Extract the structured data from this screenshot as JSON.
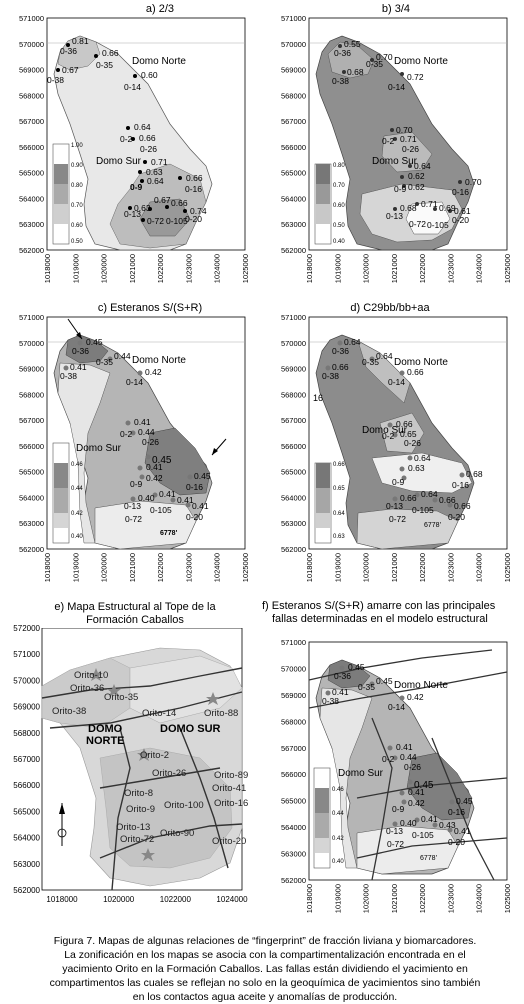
{
  "panels": {
    "a": {
      "title": "a) 2/3",
      "domo_norte": "Domo Norte",
      "domo_sur": "Domo Sur",
      "legend": [
        "1.00",
        "0.90",
        "0.80",
        "0.70",
        "0.60",
        "0.50"
      ]
    },
    "b": {
      "title": "b) 3/4",
      "domo_norte": "Domo Norte",
      "domo_sur": "Domo Sur",
      "legend": [
        "0.80",
        "0.70",
        "0.60",
        "0.50",
        "0.40"
      ]
    },
    "c": {
      "title": "c) Esteranos S/(S+R)",
      "domo_norte": "Domo Norte",
      "domo_sur": "Domo Sur",
      "legend": [
        "0.46",
        "0.44",
        "0.42",
        "0.40"
      ],
      "well_label": "6778'"
    },
    "d": {
      "title": "d) C29bb/bb+aa",
      "domo_norte": "Domo Norte",
      "domo_sur": "Domo Sur",
      "legend": [
        "0.66",
        "0.65",
        "0.64",
        "0.63"
      ],
      "side_label": "16",
      "well_label": "6778'"
    },
    "e": {
      "title_line1": "e) Mapa Estructural al Tope de la",
      "title_line2": "Formación Caballos",
      "domo_norte_1": "DOMO",
      "domo_norte_2": "NORTE",
      "domo_sur": "DOMO SUR",
      "wells": [
        "Orito-10",
        "Orito-36",
        "Orito-35",
        "Orito-38",
        "Orito-14",
        "Orito-88",
        "Orito-2",
        "Orito-26",
        "Orito-8",
        "Orito-9",
        "Orito-100",
        "Orito-13",
        "Orito-72",
        "Orito-90",
        "Orito-20",
        "Orito-89",
        "Orito-41",
        "Orito-16"
      ]
    },
    "f": {
      "title_line1": "f) Esteranos S/(S+R)   amarre con las principales",
      "title_line2": "fallas determinadas en el modelo estructural",
      "domo_norte": "Domo Norte",
      "domo_sur": "Domo Sur",
      "legend": [
        "0.46",
        "0.44",
        "0.42",
        "0.40"
      ],
      "well_label": "6778'"
    }
  },
  "axes": {
    "y_ticks": [
      "571000",
      "570000",
      "569000",
      "568000",
      "567000",
      "566000",
      "565000",
      "564000",
      "563000",
      "562000"
    ],
    "x_ticks": [
      "1018000",
      "1019000",
      "1020000",
      "1021000",
      "1022000",
      "1023000",
      "1024000",
      "1025000"
    ],
    "e_y_ticks": [
      "572000",
      "571000",
      "570000",
      "569000",
      "568000",
      "567000",
      "566000",
      "565000",
      "564000",
      "563000",
      "562000"
    ],
    "e_x_ticks": [
      "1018000",
      "1020000",
      "1022000",
      "1024000"
    ]
  },
  "caption": {
    "line1": "Figura 7. Mapas de algunas relaciones de “fingerprint” de fracción liviana y biomarcadores.",
    "line2": "La zonificación en los mapas se asocia con la compartimentalización encontrada en el",
    "line3": "yacimiento Orito en la Formación Caballos. Las fallas están dividiendo el yacimiento en",
    "line4": "compartimentos las cuales se reflejan no solo en la geoquímica de yacimientos sino también",
    "line5": "en los contactos agua aceite y anomalías de producción."
  }
}
